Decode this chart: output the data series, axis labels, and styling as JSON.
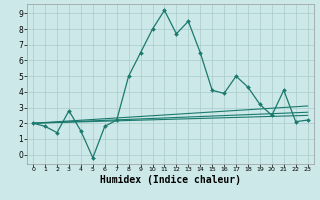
{
  "xlabel": "Humidex (Indice chaleur)",
  "background_color": "#cce8e8",
  "grid_color": "#aacccc",
  "line_color": "#1a7a6e",
  "xlim": [
    -0.5,
    23.5
  ],
  "ylim": [
    -0.6,
    9.6
  ],
  "xticks": [
    0,
    1,
    2,
    3,
    4,
    5,
    6,
    7,
    8,
    9,
    10,
    11,
    12,
    13,
    14,
    15,
    16,
    17,
    18,
    19,
    20,
    21,
    22,
    23
  ],
  "yticks": [
    0,
    1,
    2,
    3,
    4,
    5,
    6,
    7,
    8,
    9
  ],
  "main_series": [
    2.0,
    1.8,
    1.4,
    2.8,
    1.5,
    -0.2,
    1.8,
    2.2,
    5.0,
    6.5,
    8.0,
    9.2,
    7.7,
    8.5,
    6.5,
    4.1,
    3.9,
    5.0,
    4.3,
    3.2,
    2.5,
    4.1,
    2.1,
    2.2
  ],
  "line1_start": 2.0,
  "line1_end": 3.1,
  "line2_start": 2.0,
  "line2_end": 2.7,
  "line3_start": 2.0,
  "line3_end": 2.5
}
